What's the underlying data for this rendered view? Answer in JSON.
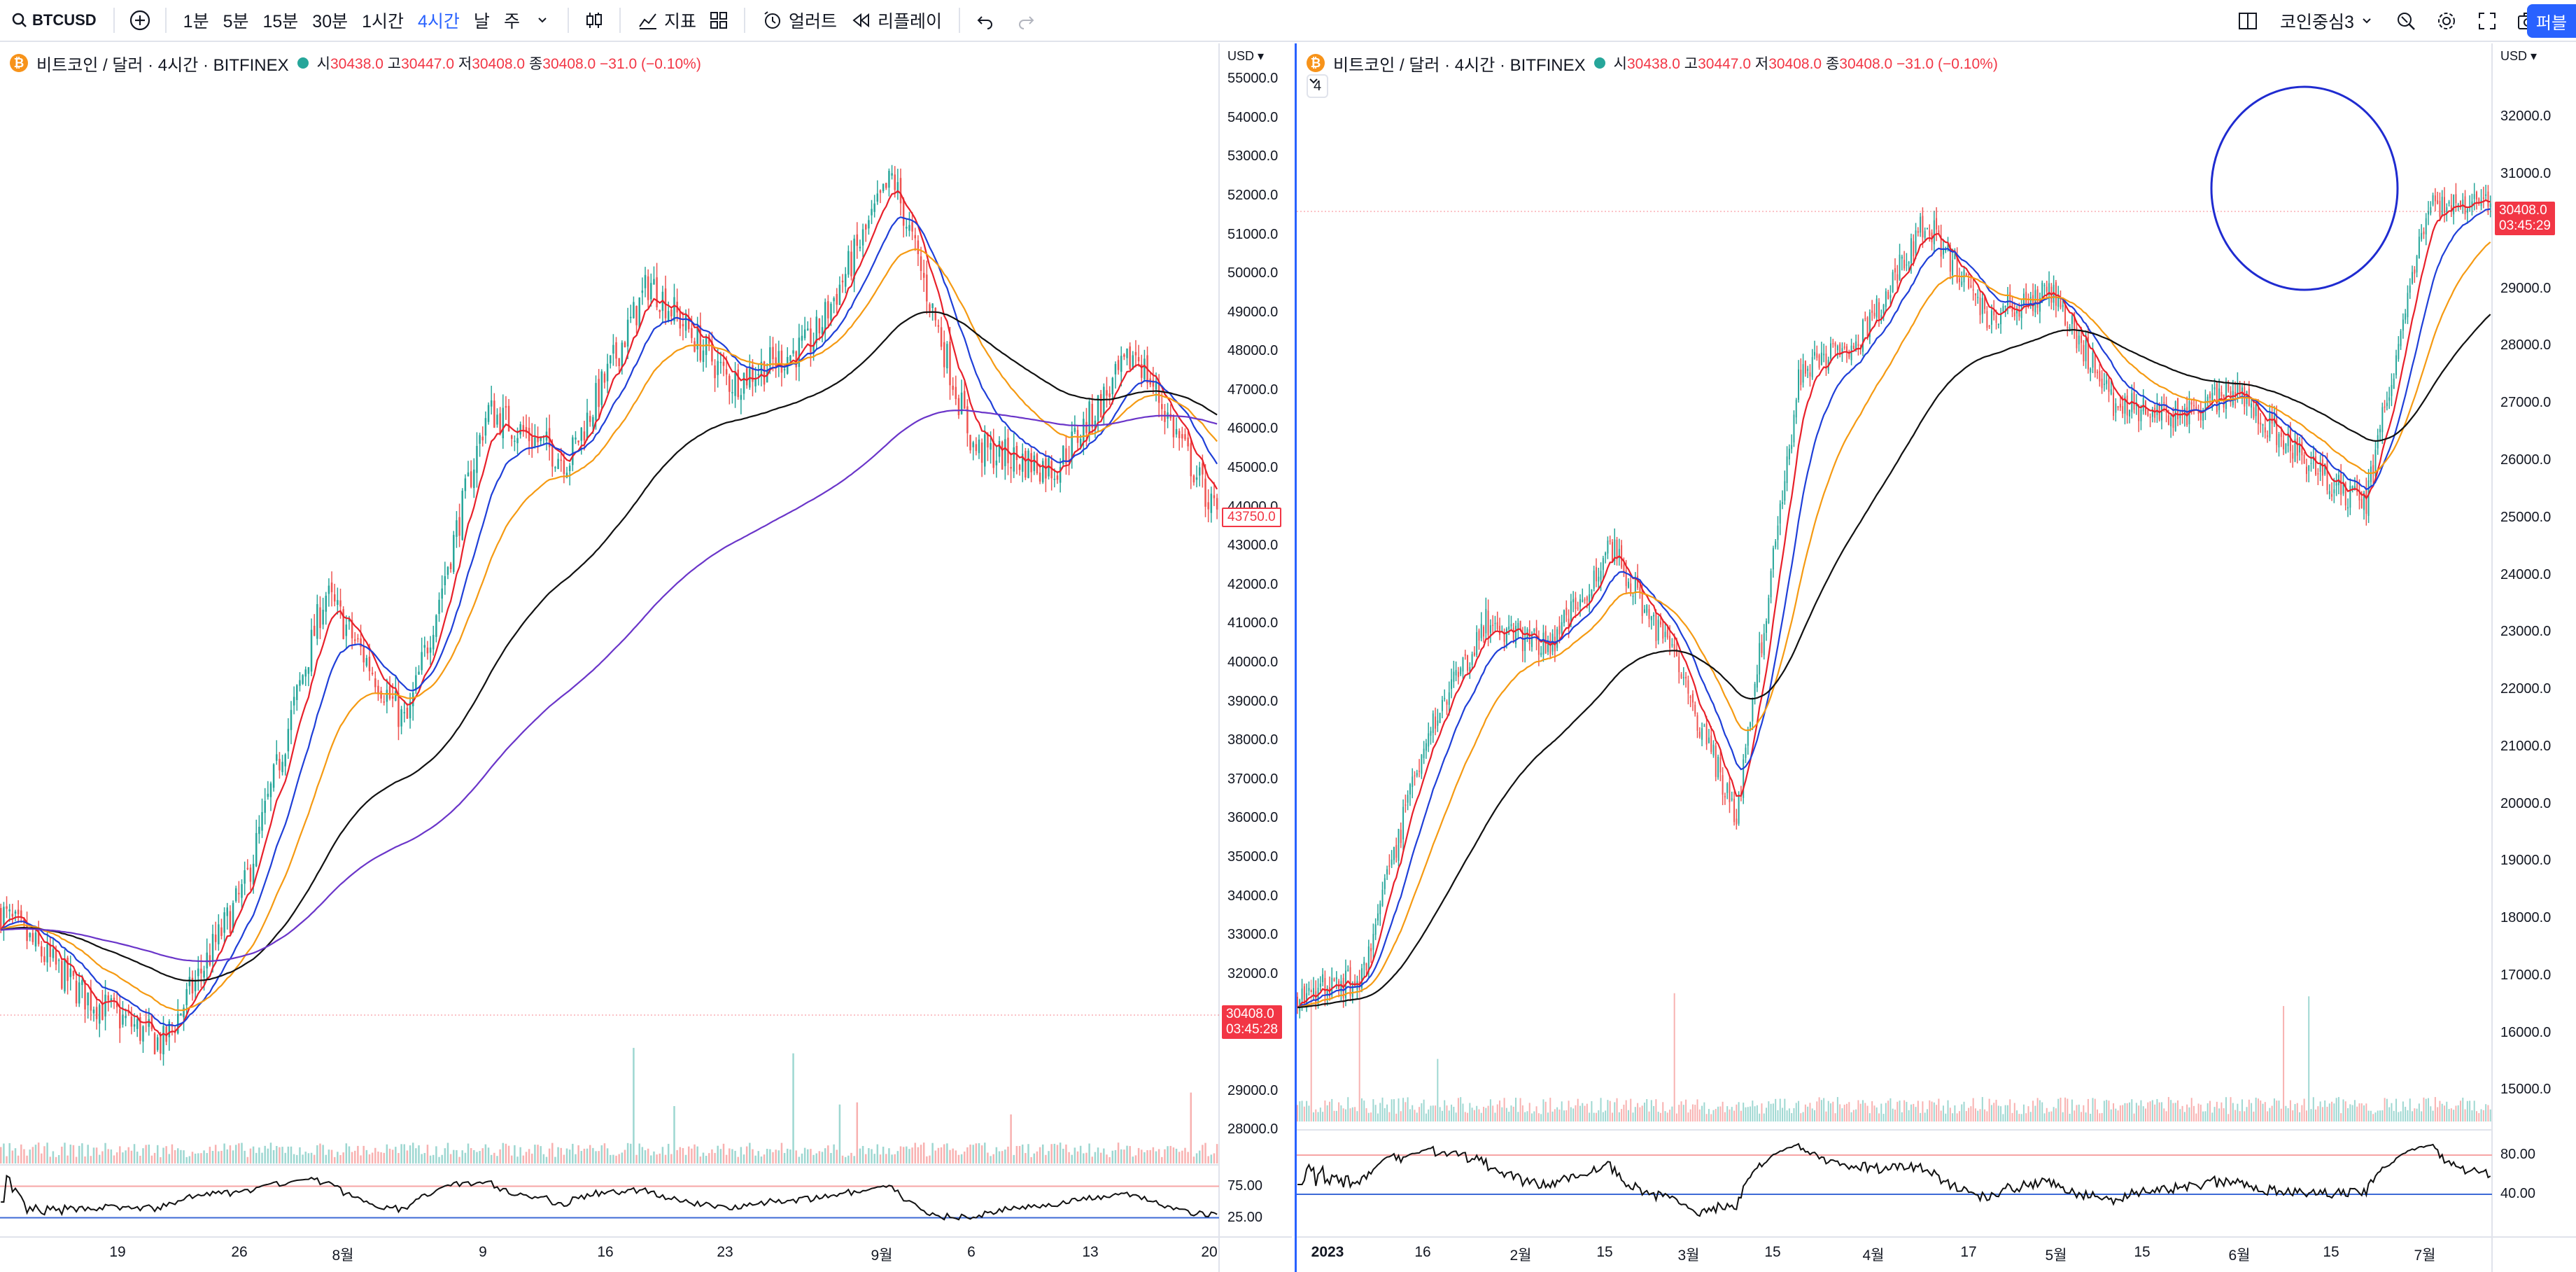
{
  "toolbar": {
    "symbol": "BTCUSD",
    "intervals": [
      "1분",
      "5분",
      "15분",
      "30분",
      "1시간",
      "4시간",
      "날",
      "주"
    ],
    "active_interval": "4시간",
    "indicators_label": "지표",
    "alert_label": "얼러트",
    "replay_label": "리플레이",
    "layout_name": "코인중심3",
    "publish_label": "퍼블"
  },
  "left_pane": {
    "legend": {
      "title": "비트코인 / 달러 · 4시간 · BITFINEX",
      "o_label": "시",
      "o": "30438.0",
      "h_label": "고",
      "h": "30447.0",
      "l_label": "저",
      "l": "30408.0",
      "c_label": "종",
      "c": "30408.0",
      "change": "−31.0 (−0.10%)"
    },
    "currency": "USD",
    "price_axis": [
      "55000.0",
      "54000.0",
      "53000.0",
      "52000.0",
      "51000.0",
      "50000.0",
      "49000.0",
      "48000.0",
      "47000.0",
      "46000.0",
      "45000.0",
      "44000.0",
      "43000.0",
      "42000.0",
      "41000.0",
      "40000.0",
      "39000.0",
      "38000.0",
      "37000.0",
      "36000.0",
      "35000.0",
      "34000.0",
      "33000.0",
      "32000.0",
      "31000.0",
      "29000.0",
      "28000.0"
    ],
    "last_price_tag": "43750.0",
    "current_tag": {
      "price": "30408.0",
      "countdown": "03:45:28"
    },
    "rsi_axis": [
      "75.00",
      "25.00"
    ],
    "time_axis": [
      "19",
      "26",
      "8월",
      "9",
      "16",
      "23",
      "9월",
      "6",
      "13",
      "20"
    ]
  },
  "right_pane": {
    "legend": {
      "title": "비트코인 / 달러 · 4시간 · BITFINEX",
      "o_label": "시",
      "o": "30438.0",
      "h_label": "고",
      "h": "30447.0",
      "l_label": "저",
      "l": "30408.0",
      "c_label": "종",
      "c": "30408.0",
      "change": "−31.0 (−0.10%)"
    },
    "collapse_count": "4",
    "currency": "USD",
    "price_axis": [
      "32000.0",
      "31000.0",
      "30000.0",
      "29000.0",
      "28000.0",
      "27000.0",
      "26000.0",
      "25000.0",
      "24000.0",
      "23000.0",
      "22000.0",
      "21000.0",
      "20000.0",
      "19000.0",
      "18000.0",
      "17000.0",
      "16000.0",
      "15000.0"
    ],
    "current_tag": {
      "price": "30408.0",
      "countdown": "03:45:29"
    },
    "rsi_axis": [
      "80.00",
      "40.00"
    ],
    "time_axis": [
      "2023",
      "16",
      "2월",
      "15",
      "3월",
      "15",
      "4월",
      "17",
      "5월",
      "15",
      "6월",
      "15",
      "7월"
    ]
  },
  "chart_data": [
    {
      "type": "candlestick",
      "title": "비트코인 / 달러 · 4시간 · BITFINEX",
      "ylim": [
        27500,
        55200
      ],
      "x": [
        "19",
        "26",
        "8월",
        "9",
        "16",
        "23",
        "9월",
        "6",
        "13",
        "20"
      ],
      "close_approx": [
        33600,
        31500,
        30200,
        34200,
        41800,
        38400,
        46500,
        45200,
        49800,
        47200,
        48200,
        52500,
        45500,
        45000,
        48000,
        43750
      ],
      "moving_averages": [
        "red",
        "blue",
        "orange",
        "black",
        "purple"
      ],
      "rsi": {
        "upper": 75,
        "lower": 25
      }
    },
    {
      "type": "candlestick",
      "title": "비트코인 / 달러 · 4시간 · BITFINEX",
      "ylim": [
        14700,
        32800
      ],
      "x": [
        "2023",
        "16",
        "2월",
        "15",
        "3월",
        "15",
        "4월",
        "17",
        "5월",
        "15",
        "6월",
        "15",
        "7월"
      ],
      "close_approx": [
        16700,
        16900,
        21000,
        23200,
        22700,
        24500,
        22500,
        19800,
        27500,
        28200,
        30200,
        28500,
        29000,
        27000,
        26800,
        27200,
        26000,
        25200,
        30500,
        30408
      ],
      "moving_averages": [
        "red",
        "blue",
        "orange",
        "black"
      ],
      "rsi": {
        "upper": 80,
        "lower": 40
      }
    }
  ]
}
